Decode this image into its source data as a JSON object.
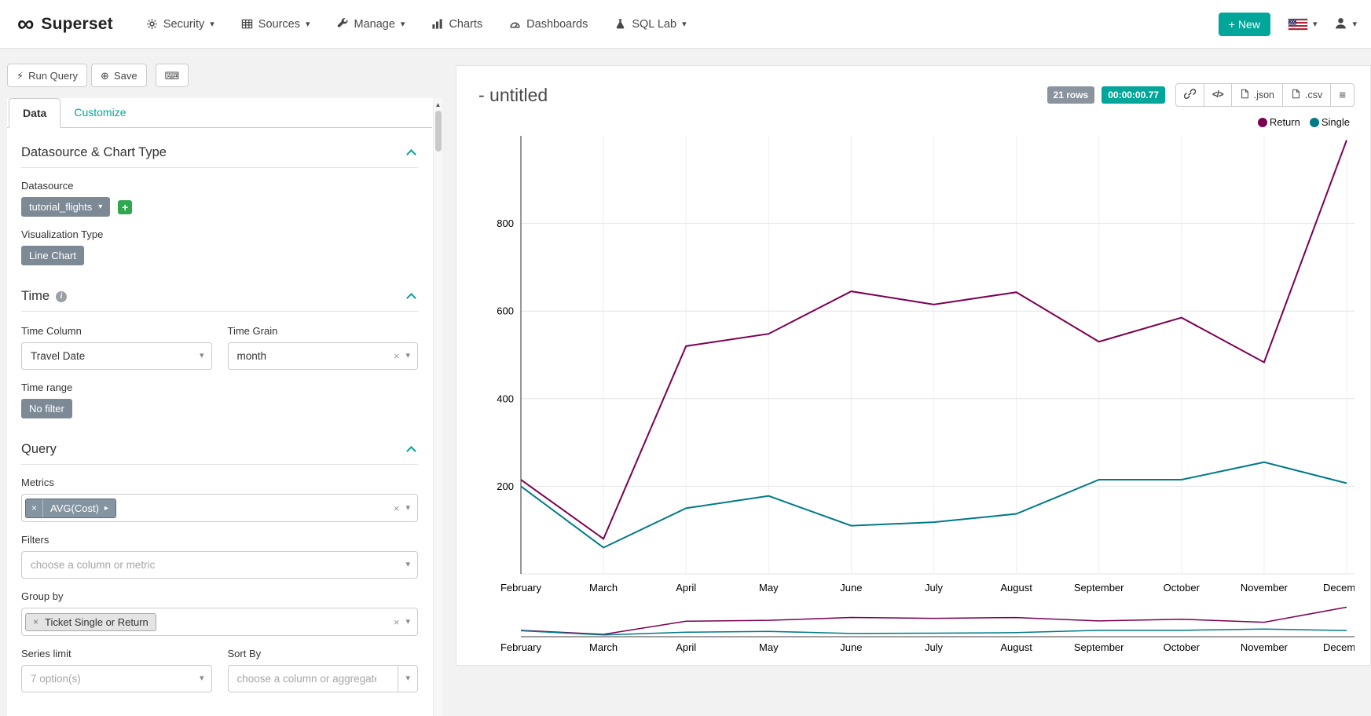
{
  "navbar": {
    "brand": "Superset",
    "new_button": "New",
    "items": [
      {
        "label": "Security"
      },
      {
        "label": "Sources"
      },
      {
        "label": "Manage"
      },
      {
        "label": "Charts"
      },
      {
        "label": "Dashboards"
      },
      {
        "label": "SQL Lab"
      }
    ]
  },
  "toolbar": {
    "run_query": "Run Query",
    "save": "Save"
  },
  "tabs": {
    "data": "Data",
    "customize": "Customize"
  },
  "controls": {
    "section_datasource": "Datasource & Chart Type",
    "datasource_label": "Datasource",
    "datasource_value": "tutorial_flights",
    "viz_type_label": "Visualization Type",
    "viz_type_value": "Line Chart",
    "section_time": "Time",
    "time_column_label": "Time Column",
    "time_column_value": "Travel Date",
    "time_grain_label": "Time Grain",
    "time_grain_value": "month",
    "time_range_label": "Time range",
    "time_range_value": "No filter",
    "section_query": "Query",
    "metrics_label": "Metrics",
    "metrics_value": "AVG(Cost)",
    "filters_label": "Filters",
    "filters_placeholder": "choose a column or metric",
    "groupby_label": "Group by",
    "groupby_value": "Ticket Single or Return",
    "series_limit_label": "Series limit",
    "series_limit_value": "7 option(s)",
    "sort_by_label": "Sort By",
    "sort_by_placeholder": "choose a column or aggregate f..."
  },
  "chart_header": {
    "title": "- untitled",
    "rows_badge": "21 rows",
    "timer_badge": "00:00:00.77",
    "json_label": ".json",
    "csv_label": ".csv"
  },
  "chart_data": {
    "type": "line",
    "title": "- untitled",
    "x": [
      "February",
      "March",
      "April",
      "May",
      "June",
      "July",
      "August",
      "September",
      "October",
      "November",
      "December"
    ],
    "series": [
      {
        "name": "Return",
        "color": "#7b0051",
        "values": [
          215,
          80,
          520,
          548,
          645,
          615,
          643,
          530,
          585,
          483,
          990
        ]
      },
      {
        "name": "Single",
        "color": "#007A87",
        "values": [
          200,
          60,
          150,
          178,
          110,
          118,
          137,
          215,
          215,
          255,
          207
        ]
      }
    ],
    "ylim": [
      0,
      1000
    ],
    "yticks": [
      200,
      400,
      600,
      800
    ],
    "grid": true,
    "legend_position": "top-right",
    "focus_chart": true
  },
  "icons": {
    "infinity": "∞",
    "caret_down": "▾",
    "bolt": "⚡",
    "plus_circle": "⊕",
    "keyboard": "⌨",
    "hamburger": "≡",
    "embed": "</>",
    "close": "×",
    "chip_caret": "▾",
    "chip_expand": "▸",
    "plus": "+",
    "scroll_up": "▲",
    "info": "i"
  },
  "colors": {
    "accent": "#00A699",
    "chip_grey": "#7d8a96",
    "badge_grey": "#8a949e"
  }
}
